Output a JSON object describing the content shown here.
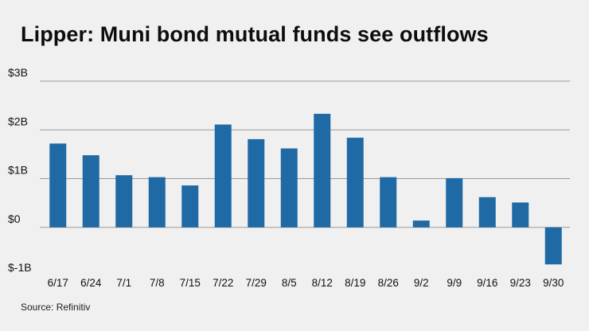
{
  "title": "Lipper: Muni bond mutual funds see outflows",
  "source": "Source: Refinitiv",
  "colors": {
    "bar": "#1f6aa5",
    "grid": "#9a9a9a",
    "background": "#f0f0f0"
  },
  "chart_data": {
    "type": "bar",
    "title": "Lipper: Muni bond mutual funds see outflows",
    "xlabel": "",
    "ylabel": "",
    "ylim": [
      -1,
      3
    ],
    "yticks": [
      {
        "value": -1,
        "label": "$-1B"
      },
      {
        "value": 0,
        "label": "$0"
      },
      {
        "value": 1,
        "label": "$1B"
      },
      {
        "value": 2,
        "label": "$2B"
      },
      {
        "value": 3,
        "label": "$3B"
      }
    ],
    "grid": true,
    "categories": [
      "6/17",
      "6/24",
      "7/1",
      "7/8",
      "7/15",
      "7/22",
      "7/29",
      "8/5",
      "8/12",
      "8/19",
      "8/26",
      "9/2",
      "9/9",
      "9/16",
      "9/23",
      "9/30"
    ],
    "values": [
      1.72,
      1.48,
      1.07,
      1.03,
      0.86,
      2.11,
      1.81,
      1.62,
      2.33,
      1.84,
      1.03,
      0.14,
      1.01,
      0.62,
      0.51,
      -0.76
    ]
  }
}
